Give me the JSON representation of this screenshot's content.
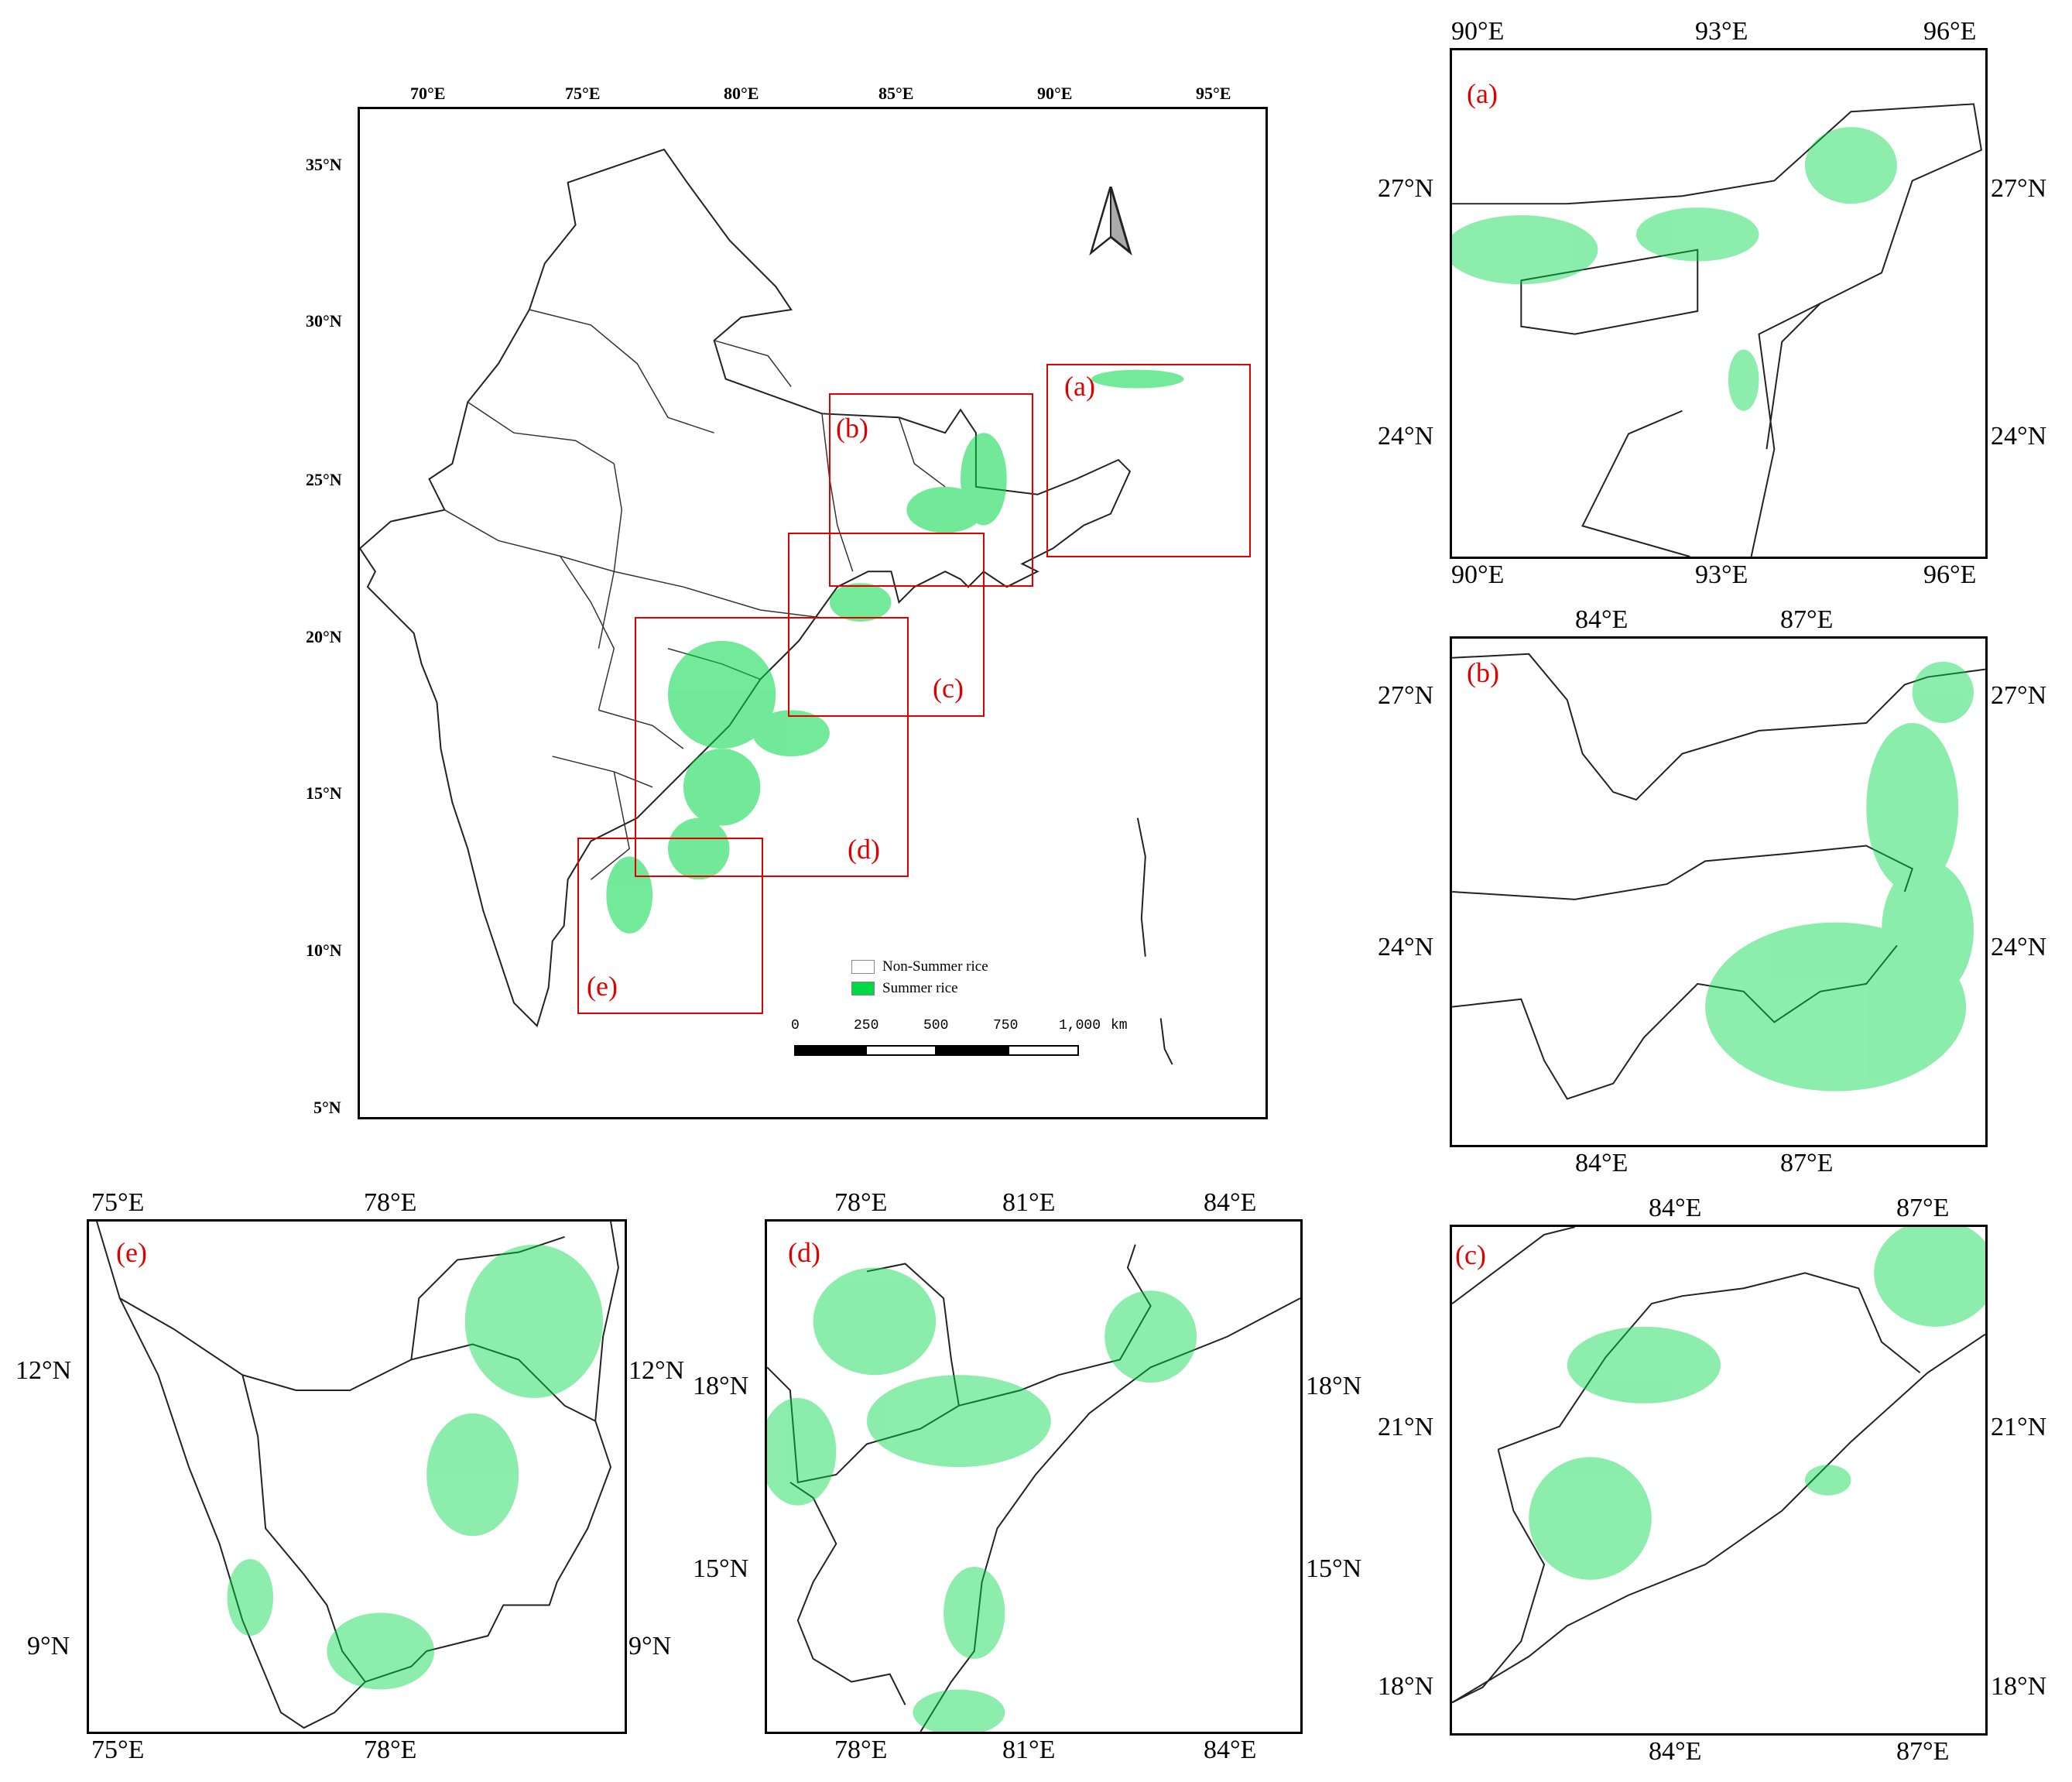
{
  "colors": {
    "summer_rice": "#00d846",
    "non_summer_rice": "#ffffff",
    "boxes": "#e00000",
    "boundary": "#222222"
  },
  "main_map": {
    "lon_labels": [
      "70°E",
      "75°E",
      "80°E",
      "85°E",
      "90°E",
      "95°E"
    ],
    "lat_labels": [
      "35°N",
      "30°N",
      "25°N",
      "20°N",
      "15°N",
      "10°N",
      "5°N"
    ],
    "boxes": [
      "(a)",
      "(b)",
      "(c)",
      "(d)",
      "(e)"
    ],
    "north_arrow": "north-arrow-icon",
    "legend": [
      {
        "label": "Non-Summer rice",
        "color": "#ffffff"
      },
      {
        "label": "Summer rice",
        "color": "#00d846"
      }
    ],
    "scale_bar": {
      "ticks": [
        "0",
        "250",
        "500",
        "750",
        "1,000"
      ],
      "unit": "km"
    }
  },
  "panels": {
    "a": {
      "letter": "(a)",
      "top_lon": [
        "90°E",
        "93°E",
        "96°E"
      ],
      "bottom_lon": [
        "90°E",
        "93°E",
        "96°E"
      ],
      "left_lat": [
        "27°N",
        "24°N"
      ],
      "right_lat": [
        "27°N",
        "24°N"
      ]
    },
    "b": {
      "letter": "(b)",
      "top_lon": [
        "84°E",
        "87°E"
      ],
      "bottom_lon": [
        "84°E",
        "87°E"
      ],
      "left_lat": [
        "27°N",
        "24°N"
      ],
      "right_lat": [
        "27°N",
        "24°N"
      ]
    },
    "c": {
      "letter": "(c)",
      "top_lon": [
        "84°E",
        "87°E"
      ],
      "bottom_lon": [
        "84°E",
        "87°E"
      ],
      "left_lat": [
        "21°N",
        "18°N"
      ],
      "right_lat": [
        "21°N",
        "18°N"
      ]
    },
    "d": {
      "letter": "(d)",
      "top_lon": [
        "78°E",
        "81°E",
        "84°E"
      ],
      "bottom_lon": [
        "78°E",
        "81°E",
        "84°E"
      ],
      "left_lat": [
        "18°N",
        "15°N"
      ],
      "right_lat": [
        "18°N",
        "15°N"
      ]
    },
    "e": {
      "letter": "(e)",
      "top_lon": [
        "75°E",
        "78°E"
      ],
      "bottom_lon": [
        "75°E",
        "78°E"
      ],
      "left_lat": [
        "12°N",
        "9°N"
      ],
      "right_lat": [
        "12°N",
        "9°N"
      ]
    }
  }
}
